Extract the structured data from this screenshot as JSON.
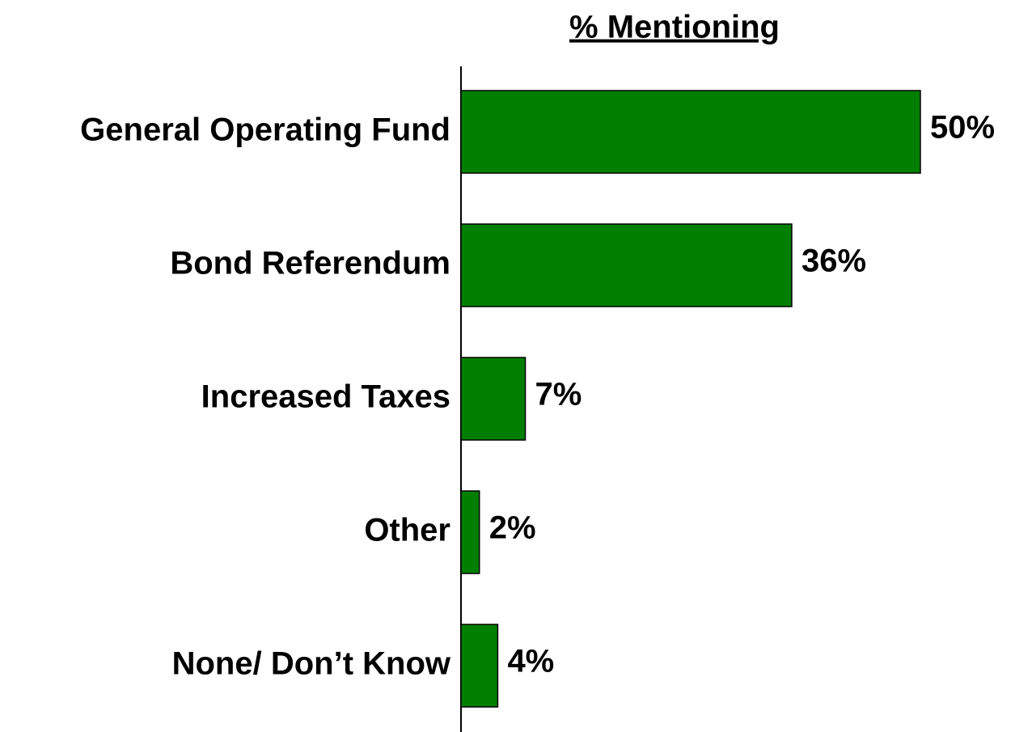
{
  "chart_data": {
    "type": "bar",
    "orientation": "horizontal",
    "title": "% Mentioning",
    "categories": [
      "General Operating Fund",
      "Bond Referendum",
      "Increased Taxes",
      "Other",
      "None/ Don’t Know"
    ],
    "values": [
      50,
      36,
      7,
      2,
      4
    ],
    "value_labels": [
      "50%",
      "36%",
      "7%",
      "2%",
      "4%"
    ],
    "color": "#007f00"
  }
}
